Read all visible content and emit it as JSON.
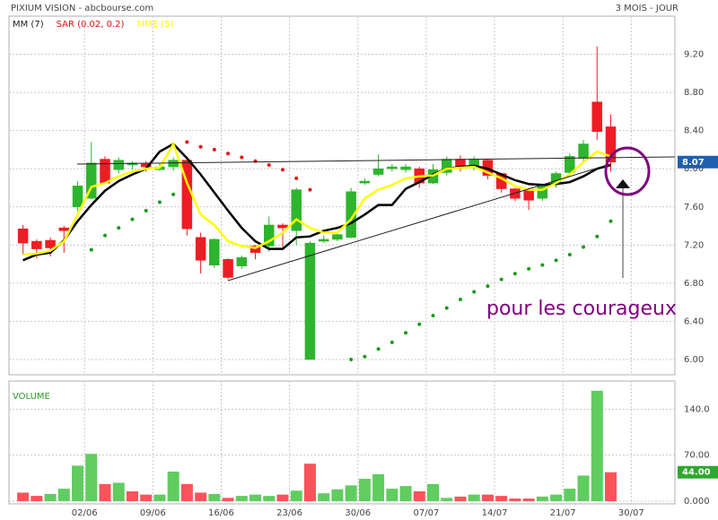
{
  "chart_data": {
    "type": "candlestick",
    "title": "PIXIUM VISION - abcbourse.com",
    "subtitle": "3 MOIS - JOUR",
    "categories": [
      null,
      null,
      null,
      null,
      null,
      "02/06",
      null,
      null,
      null,
      null,
      "09/06",
      null,
      null,
      null,
      null,
      "16/06",
      null,
      null,
      null,
      null,
      "23/06",
      null,
      null,
      null,
      null,
      "30/06",
      null,
      null,
      null,
      null,
      "07/07",
      null,
      null,
      null,
      null,
      "14/07",
      null,
      null,
      null,
      null,
      "21/07",
      null,
      null,
      null,
      null,
      "30/07",
      null
    ],
    "open": [
      7.37,
      7.24,
      7.25,
      7.38,
      7.6,
      7.69,
      8.1,
      7.99,
      8.04,
      8.05,
      7.99,
      8.02,
      8.09,
      7.28,
      6.99,
      7.05,
      6.98,
      7.19,
      7.19,
      7.41,
      7.35,
      6.0,
      7.24,
      7.26,
      7.28,
      7.85,
      7.94,
      8.0,
      7.99,
      8.0,
      7.85,
      7.96,
      8.1,
      8.01,
      8.09,
      7.95,
      7.79,
      7.77,
      7.69,
      7.85,
      7.96,
      8.11,
      8.7,
      8.44,
      null,
      null,
      null
    ],
    "high": [
      7.41,
      7.26,
      7.28,
      7.4,
      7.87,
      8.28,
      8.13,
      8.12,
      8.08,
      8.08,
      8.06,
      8.12,
      8.1,
      7.33,
      7.27,
      7.06,
      7.09,
      7.2,
      7.5,
      7.43,
      7.8,
      7.24,
      7.3,
      7.34,
      7.8,
      7.9,
      8.15,
      8.05,
      8.05,
      8.02,
      8.05,
      8.13,
      8.14,
      8.13,
      8.1,
      7.96,
      7.8,
      7.8,
      7.84,
      7.97,
      8.16,
      8.3,
      9.28,
      8.57,
      null,
      null,
      null
    ],
    "low": [
      7.1,
      7.06,
      7.08,
      7.12,
      7.56,
      7.68,
      7.84,
      7.95,
      7.99,
      7.97,
      7.98,
      7.98,
      7.3,
      6.9,
      6.96,
      6.84,
      6.95,
      7.05,
      7.13,
      7.18,
      7.2,
      6.0,
      7.22,
      7.24,
      7.27,
      7.83,
      7.92,
      7.97,
      7.96,
      7.8,
      7.84,
      7.93,
      7.97,
      7.98,
      7.89,
      7.75,
      7.66,
      7.57,
      7.66,
      7.8,
      7.95,
      8.08,
      8.3,
      7.97,
      null,
      null,
      null
    ],
    "close": [
      7.22,
      7.16,
      7.17,
      7.35,
      7.82,
      8.06,
      7.85,
      8.09,
      8.06,
      8.02,
      8.02,
      8.09,
      7.37,
      7.04,
      7.26,
      6.86,
      7.07,
      7.12,
      7.41,
      7.38,
      7.78,
      7.22,
      7.26,
      7.31,
      7.76,
      7.87,
      8.0,
      8.02,
      8.02,
      7.85,
      7.99,
      8.1,
      8.01,
      8.1,
      7.93,
      7.79,
      7.69,
      7.67,
      7.82,
      7.95,
      8.13,
      8.26,
      8.39,
      8.07,
      null,
      null,
      null
    ],
    "up_color": "#2db52d",
    "down_color": "#ee1c24",
    "series": [
      {
        "name": "MM (7)",
        "color": "#000000",
        "style": "line",
        "values": [
          7.04,
          7.1,
          7.12,
          7.25,
          7.45,
          7.62,
          7.77,
          7.87,
          7.94,
          8.0,
          8.18,
          8.26,
          8.11,
          7.94,
          7.75,
          7.56,
          7.38,
          7.24,
          7.16,
          7.16,
          7.28,
          7.29,
          7.35,
          7.38,
          7.43,
          7.52,
          7.62,
          7.62,
          7.79,
          7.86,
          7.94,
          8.0,
          8.02,
          8.03,
          8.0,
          7.94,
          7.88,
          7.84,
          7.83,
          7.84,
          7.86,
          7.92,
          8.0,
          8.04,
          null,
          null,
          null
        ]
      },
      {
        "name": "SAR (0.02, 0.2)",
        "color": "#e01010",
        "below_color": "#1a9a1a",
        "style": "dots",
        "values": [
          null,
          null,
          null,
          null,
          null,
          7.15,
          7.3,
          7.38,
          7.47,
          7.56,
          7.65,
          7.73,
          8.28,
          8.23,
          8.2,
          8.16,
          8.12,
          8.08,
          8.04,
          7.99,
          7.9,
          7.78,
          null,
          null,
          6.0,
          6.03,
          6.11,
          6.18,
          6.28,
          6.37,
          6.46,
          6.54,
          6.63,
          6.71,
          6.77,
          6.84,
          6.9,
          6.95,
          6.99,
          7.04,
          7.1,
          7.18,
          7.29,
          7.45,
          null,
          null,
          null
        ]
      },
      {
        "name": "MME (5)",
        "color": "#ffff00",
        "style": "line",
        "values": [
          7.1,
          7.11,
          7.14,
          7.24,
          7.52,
          7.81,
          7.85,
          7.92,
          7.97,
          8.0,
          8.01,
          8.26,
          7.85,
          7.52,
          7.41,
          7.24,
          7.19,
          7.17,
          7.24,
          7.33,
          7.47,
          7.38,
          7.33,
          7.33,
          7.47,
          7.69,
          7.78,
          7.83,
          7.9,
          7.92,
          7.93,
          8.0,
          8.01,
          8.02,
          7.96,
          7.9,
          7.82,
          7.78,
          7.78,
          7.85,
          7.94,
          8.07,
          8.18,
          8.13,
          null,
          null,
          null
        ]
      }
    ],
    "ylim": [
      5.84,
      9.6
    ],
    "yticks": [
      {
        "value": 6,
        "label": "6.00"
      },
      {
        "value": 6.4,
        "label": "6.40"
      },
      {
        "value": 6.8,
        "label": "6.80"
      },
      {
        "value": 7.2,
        "label": "7.20"
      },
      {
        "value": 7.6,
        "label": "7.60"
      },
      {
        "value": 8,
        "label": "8.00"
      },
      {
        "value": 8.4,
        "label": "8.40"
      },
      {
        "value": 8.8,
        "label": "8.80"
      },
      {
        "value": 9.2,
        "label": "9.20"
      }
    ],
    "grid": true,
    "annotation": "pour les courageux",
    "volume": {
      "title": "VOLUME",
      "values": [
        13,
        8,
        11,
        19,
        54,
        72,
        26,
        28,
        15,
        10,
        10,
        45,
        26,
        13,
        11,
        5,
        8,
        10,
        8,
        10,
        16,
        57,
        12,
        18,
        24,
        34,
        41,
        19,
        23,
        15,
        26,
        5,
        7,
        10,
        10,
        8,
        4,
        4,
        7,
        10,
        19,
        39,
        168,
        44,
        null,
        null,
        null
      ],
      "last_value_label": "44.00",
      "ylim": [
        0,
        180
      ],
      "yticks": [
        {
          "value": 0,
          "label": "0.000"
        },
        {
          "value": 70,
          "label": "70.00"
        },
        {
          "value": 140,
          "label": "140.0"
        }
      ]
    }
  }
}
